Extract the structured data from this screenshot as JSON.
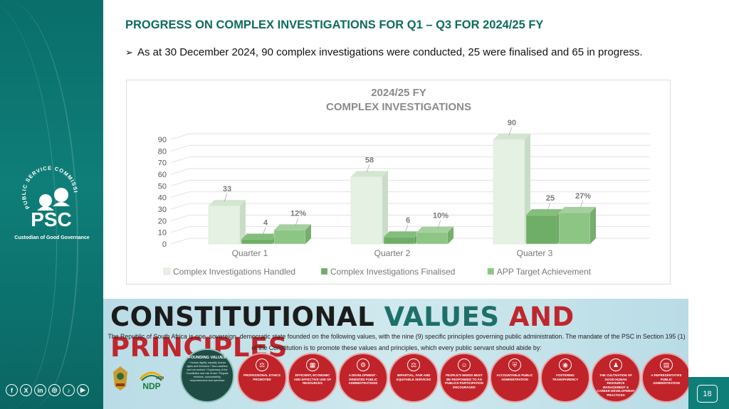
{
  "slide": {
    "title": "PROGRESS ON COMPLEX INVESTIGATIONS FOR Q1 – Q3 FOR 2024/25 FY",
    "bullet_text": "As at 30 December 2024, 90 complex investigations were conducted,  25 were finalised and 65 in progress.",
    "page_number": "18",
    "accent_color": "#0e6b5e",
    "sidebar_color": "#0f7e78"
  },
  "logo": {
    "name": "PSC",
    "ring_text": "PUBLIC SERVICE COMMISSION",
    "caption": "Custodian of Good Governance"
  },
  "social_icons": [
    "facebook-icon",
    "x-icon",
    "linkedin-icon",
    "instagram-icon",
    "tiktok-icon",
    "youtube-icon"
  ],
  "chart_data": {
    "type": "bar",
    "title": "2024/25 FY",
    "subtitle": "COMPLEX INVESTIGATIONS",
    "categories": [
      "Quarter 1",
      "Quarter 2",
      "Quarter 3"
    ],
    "series": [
      {
        "name": "Complex Investigations Handled",
        "values": [
          33,
          58,
          90
        ],
        "labels": [
          "33",
          "58",
          "90"
        ],
        "color": "#e4f1e3"
      },
      {
        "name": "Complex Investigations Finalised",
        "values": [
          4,
          6,
          25
        ],
        "labels": [
          "4",
          "6",
          "25"
        ],
        "color": "#6fae66"
      },
      {
        "name": "APP Target Achievement",
        "values": [
          12,
          10,
          27
        ],
        "labels": [
          "12%",
          "10%",
          "27%"
        ],
        "color": "#8dc585"
      }
    ],
    "yticks": [
      0,
      10,
      20,
      30,
      40,
      50,
      60,
      70,
      80,
      90
    ],
    "ylim": [
      0,
      90
    ],
    "grid": true,
    "legend_position": "bottom"
  },
  "banner": {
    "heading_a": "CONSTITUTIONAL ",
    "heading_b": "VALUES ",
    "heading_c": "AND PRINCIPLES",
    "subtitle": "The Republic of South Africa is one, sovereign, democratic state founded on the following values, with the nine (9) specific principles governing public administration. The mandate of the PSC in Section 195 (1) of the Constitution is to promote these values and principles, which every public servant should abide by:",
    "ndp_label": "NDP",
    "ndp_year": "2030",
    "founding_title": "FOUNDING VALUES",
    "founding_body": "* Human dignity, equality, human rights and freedoms * Non-racialism and non-sexism * Supremacy of the Constitution and rule of law * Regular elections, accountability, responsiveness and openness",
    "principles": [
      {
        "label": "PROFESSIONAL ETHICS PROMOTED",
        "icon": "scales-icon"
      },
      {
        "label": "EFFICIENT, ECONOMIC AND EFFECTIVE USE OF RESOURCES",
        "icon": "chart-icon"
      },
      {
        "label": "A DEVELOPMENT - ORIENTED PUBLIC ADMINISTRATIONS",
        "icon": "gear-icon"
      },
      {
        "label": "IMPARTIAL, FAIR AND EQUITABLE SERVICES",
        "icon": "balance-icon"
      },
      {
        "label": "PEOPLE'S NEEDS MUST BE RESPONDED TO AN PUBLICS PARTICIPATION ENCOURAGED",
        "icon": "people-icon"
      },
      {
        "label": "ACCOUNTABLE PUBLIC ADMINISTRATION",
        "icon": "shield-icon"
      },
      {
        "label": "FOSTERING TRANSPARENCY",
        "icon": "eye-icon"
      },
      {
        "label": "THE CULTIVATION OF GOOD HUMAN RESOURCE MANAGEMENT & CAREER DEVELOPMENT PRACTICES",
        "icon": "org-icon"
      },
      {
        "label": "A REPRESENTATIVE PUBLIC ADMINISTRATION",
        "icon": "document-icon"
      }
    ]
  }
}
